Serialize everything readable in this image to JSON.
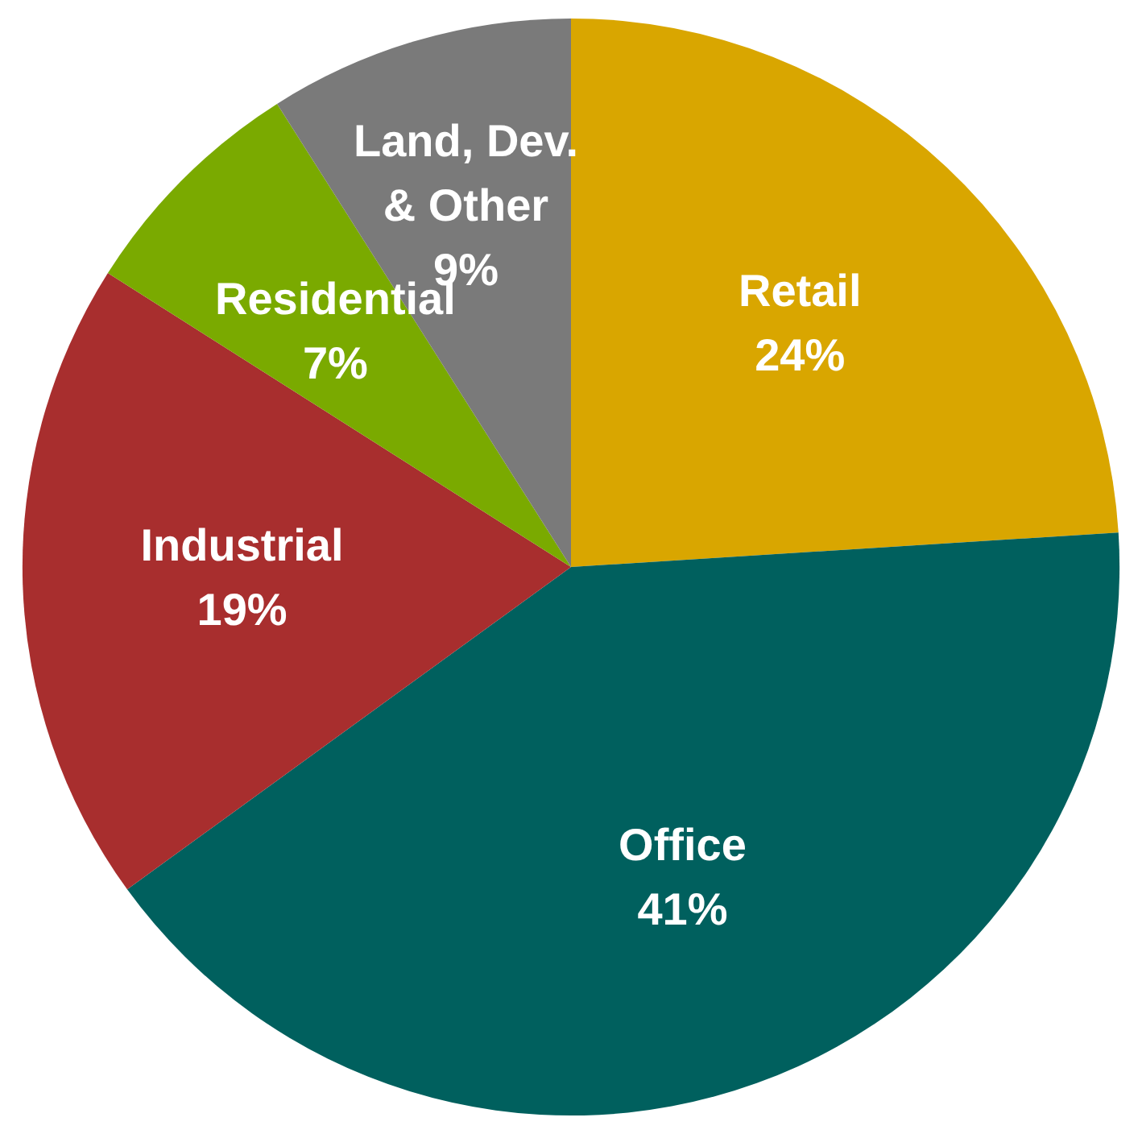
{
  "chart_data": {
    "type": "pie",
    "categories": [
      "Retail",
      "Office",
      "Industrial",
      "Residential",
      "Land, Dev.\n& Other"
    ],
    "values": [
      24,
      41,
      19,
      7,
      9
    ],
    "colors": [
      "#d9a600",
      "#00605e",
      "#a82e2e",
      "#7aaa00",
      "#7a7a7a"
    ],
    "value_labels": [
      "24%",
      "41%",
      "19%",
      "7%",
      "9%"
    ],
    "legend": false
  }
}
